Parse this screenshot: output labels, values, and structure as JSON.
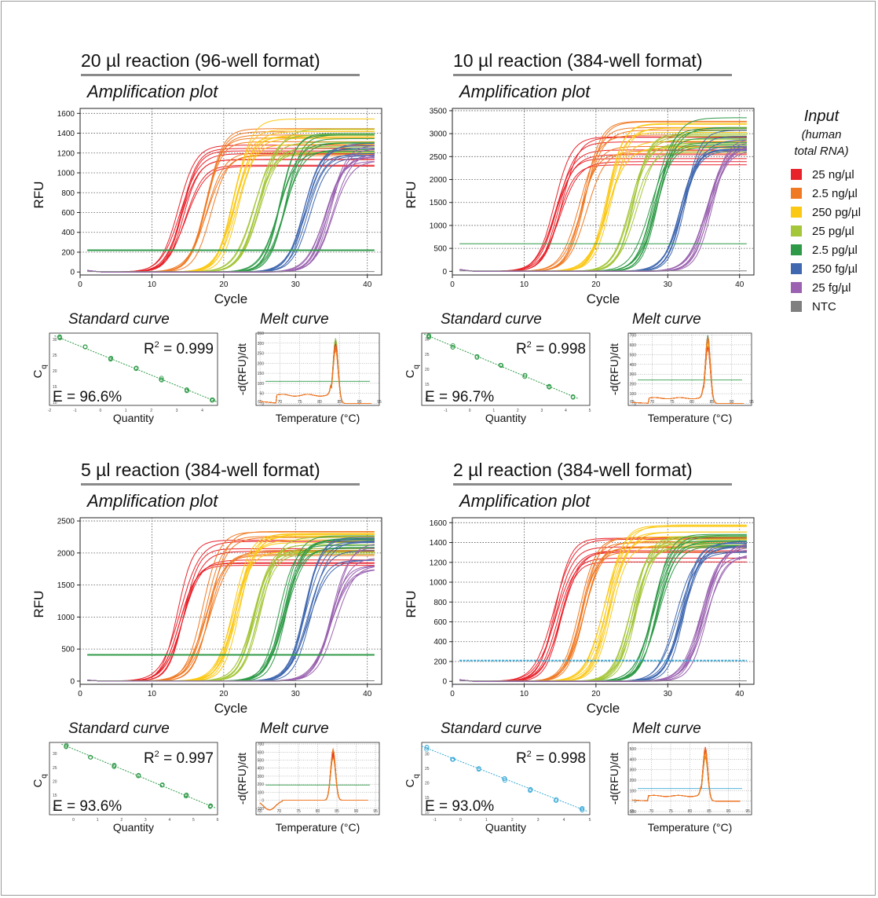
{
  "legend": {
    "title": "Input",
    "subtitle": [
      "(human",
      "total RNA)"
    ],
    "items": [
      {
        "label": "25 ng/µl",
        "color": "#e8222b"
      },
      {
        "label": "2.5 ng/µl",
        "color": "#f07a24"
      },
      {
        "label": "250 pg/µl",
        "color": "#fbc814"
      },
      {
        "label": "25 pg/µl",
        "color": "#a4c639"
      },
      {
        "label": "2.5 pg/µl",
        "color": "#2e9a47"
      },
      {
        "label": "250 fg/µl",
        "color": "#4068b0"
      },
      {
        "label": "25 fg/µl",
        "color": "#9a62b0"
      },
      {
        "label": "NTC",
        "color": "#7f7f7f"
      }
    ]
  },
  "chart_data": [
    {
      "panel": "20 µl reaction (96-well format)",
      "type": "line",
      "title": "Amplification plot",
      "xlabel": "Cycle",
      "ylabel": "RFU",
      "xlim": [
        0,
        42
      ],
      "ylim": [
        -30,
        1650
      ],
      "xticks": [
        0,
        10,
        20,
        30,
        40
      ],
      "yticks": [
        0,
        200,
        400,
        600,
        800,
        1000,
        1200,
        1400,
        1600
      ],
      "threshold": 220,
      "threshold_color": "#2e9a47",
      "series": [
        {
          "name": "25 ng/µl",
          "cq": 13.0,
          "plateau": [
            1050,
            1400
          ]
        },
        {
          "name": "2.5 ng/µl",
          "cq": 16.5,
          "plateau": [
            1150,
            1450
          ]
        },
        {
          "name": "250 pg/µl",
          "cq": 20.5,
          "plateau": [
            1200,
            1560
          ]
        },
        {
          "name": "25 pg/µl",
          "cq": 23.5,
          "plateau": [
            1200,
            1450
          ]
        },
        {
          "name": "2.5 pg/µl",
          "cq": 27.0,
          "plateau": [
            1200,
            1420
          ]
        },
        {
          "name": "250 fg/µl",
          "cq": 30.5,
          "plateau": [
            1150,
            1350
          ]
        },
        {
          "name": "25 fg/µl",
          "cq": 33.5,
          "plateau": [
            1100,
            1300
          ]
        },
        {
          "name": "NTC",
          "flat": 5
        }
      ],
      "standard_curve": {
        "title": "Standard curve",
        "xlabel": "Quantity",
        "ylabel": "C",
        "ylabel_sub": "q",
        "r2_label": "R",
        "r2_value": " = 0.999",
        "efficiency": "E = 96.6%",
        "xlim": [
          -2,
          4.6
        ],
        "ylim": [
          9,
          32
        ],
        "xticks": [
          -2,
          -1,
          0,
          1,
          2,
          3,
          4
        ],
        "yticks": [
          10,
          15,
          20,
          25,
          30
        ],
        "points": [
          [
            -1.6,
            30.5
          ],
          [
            -0.6,
            27.3
          ],
          [
            0.4,
            24.0
          ],
          [
            1.4,
            20.7
          ],
          [
            2.4,
            17.3
          ],
          [
            3.4,
            14.0
          ],
          [
            4.4,
            10.7
          ]
        ],
        "color": "#2e9a47"
      },
      "melt_curve": {
        "title": "Melt curve",
        "xlabel": "Temperature (°C)",
        "ylabel": "-d(RFU)/dt",
        "xlim": [
          64,
          95
        ],
        "ylim": [
          -10,
          350
        ],
        "xticks": [
          65,
          70,
          75,
          80,
          85,
          90,
          95
        ],
        "yticks": [
          0,
          50,
          100,
          150,
          200,
          250,
          300,
          350
        ],
        "threshold": 110,
        "threshold_color": "#2e9a47",
        "peak_temp": 84,
        "peak_max": 330,
        "shoulder": 45
      }
    },
    {
      "panel": "10 µl reaction (384-well format)",
      "type": "line",
      "title": "Amplification plot",
      "xlabel": "Cycle",
      "ylabel": "RFU",
      "xlim": [
        0,
        42
      ],
      "ylim": [
        -80,
        3550
      ],
      "xticks": [
        0,
        10,
        20,
        30,
        40
      ],
      "yticks": [
        0,
        500,
        1000,
        1500,
        2000,
        2500,
        3000,
        3500
      ],
      "threshold": 600,
      "threshold_color": "#2e9a47",
      "series": [
        {
          "name": "25 ng/µl",
          "cq": 13.5,
          "plateau": [
            2300,
            3000
          ]
        },
        {
          "name": "2.5 ng/µl",
          "cq": 17.0,
          "plateau": [
            2500,
            3300
          ]
        },
        {
          "name": "250 pg/µl",
          "cq": 20.5,
          "plateau": [
            2600,
            3300
          ]
        },
        {
          "name": "25 pg/µl",
          "cq": 24.0,
          "plateau": [
            2600,
            3200
          ]
        },
        {
          "name": "2.5 pg/µl",
          "cq": 27.0,
          "plateau": [
            2700,
            3350
          ]
        },
        {
          "name": "250 fg/µl",
          "cq": 31.0,
          "plateau": [
            2600,
            3100
          ]
        },
        {
          "name": "25 fg/µl",
          "cq": 34.5,
          "plateau": [
            2500,
            3000
          ]
        },
        {
          "name": "NTC",
          "flat": 10
        }
      ],
      "standard_curve": {
        "title": "Standard curve",
        "xlabel": "Quantity",
        "ylabel": "C",
        "ylabel_sub": "q",
        "r2_label": "R",
        "r2_value": " = 0.998",
        "efficiency": "E = 96.7%",
        "xlim": [
          -2,
          5
        ],
        "ylim": [
          8,
          32
        ],
        "xticks": [
          -1,
          0,
          1,
          2,
          3,
          4,
          5
        ],
        "yticks": [
          10,
          15,
          20,
          25,
          30
        ],
        "points": [
          [
            -1.7,
            31.0
          ],
          [
            -0.7,
            27.7
          ],
          [
            0.3,
            24.3
          ],
          [
            1.3,
            21.0
          ],
          [
            2.3,
            17.7
          ],
          [
            3.3,
            14.3
          ],
          [
            4.3,
            11.0
          ]
        ],
        "color": "#2e9a47"
      },
      "melt_curve": {
        "title": "Melt curve",
        "xlabel": "Temperature (°C)",
        "ylabel": "-d(RFU)/dt",
        "xlim": [
          64,
          95
        ],
        "ylim": [
          -20,
          720
        ],
        "xticks": [
          65,
          70,
          75,
          80,
          85,
          90,
          95
        ],
        "yticks": [
          0,
          100,
          200,
          300,
          400,
          500,
          600,
          700
        ],
        "threshold": 240,
        "threshold_color": "#2e9a47",
        "peak_temp": 84,
        "peak_max": 700,
        "shoulder": 60
      }
    },
    {
      "panel": "5 µl reaction (384-well format)",
      "type": "line",
      "title": "Amplification plot",
      "xlabel": "Cycle",
      "ylabel": "RFU",
      "xlim": [
        0,
        42
      ],
      "ylim": [
        -50,
        2550
      ],
      "xticks": [
        0,
        10,
        20,
        30,
        40
      ],
      "yticks": [
        0,
        500,
        1000,
        1500,
        2000,
        2500
      ],
      "threshold": 410,
      "threshold_color": "#2e9a47",
      "series": [
        {
          "name": "25 ng/µl",
          "cq": 13.0,
          "plateau": [
            1800,
            2200
          ]
        },
        {
          "name": "2.5 ng/µl",
          "cq": 16.5,
          "plateau": [
            1900,
            2350
          ]
        },
        {
          "name": "250 pg/µl",
          "cq": 20.5,
          "plateau": [
            1950,
            2400
          ]
        },
        {
          "name": "25 pg/µl",
          "cq": 23.5,
          "plateau": [
            1950,
            2300
          ]
        },
        {
          "name": "2.5 pg/µl",
          "cq": 27.0,
          "plateau": [
            1950,
            2300
          ]
        },
        {
          "name": "250 fg/µl",
          "cq": 30.5,
          "plateau": [
            1850,
            2250
          ]
        },
        {
          "name": "25 fg/µl",
          "cq": 34.0,
          "plateau": [
            1750,
            2200
          ]
        },
        {
          "name": "NTC",
          "flat": 5
        }
      ],
      "standard_curve": {
        "title": "Standard curve",
        "xlabel": "Quantity",
        "ylabel": "C",
        "ylabel_sub": "q",
        "r2_label": "R",
        "r2_value": " = 0.997",
        "efficiency": "E = 93.6%",
        "xlim": [
          -1,
          6
        ],
        "ylim": [
          8,
          34
        ],
        "xticks": [
          0,
          1,
          2,
          3,
          4,
          5,
          6
        ],
        "yticks": [
          10,
          15,
          20,
          25,
          30
        ],
        "points": [
          [
            -0.3,
            32.7
          ],
          [
            0.7,
            29.0
          ],
          [
            1.7,
            25.5
          ],
          [
            2.7,
            22.0
          ],
          [
            3.7,
            18.4
          ],
          [
            4.7,
            14.8
          ],
          [
            5.7,
            11.2
          ]
        ],
        "color": "#2e9a47"
      },
      "melt_curve": {
        "title": "Melt curve",
        "xlabel": "Temperature (°C)",
        "ylabel": "-d(RFU)/dt",
        "xlim": [
          64,
          96
        ],
        "ylim": [
          -180,
          720
        ],
        "xticks": [
          65,
          70,
          75,
          80,
          85,
          90,
          95
        ],
        "yticks": [
          -100,
          0,
          100,
          200,
          300,
          400,
          500,
          600,
          700
        ],
        "threshold": 190,
        "threshold_color": "#2e9a47",
        "peak_temp": 84,
        "peak_max": 650,
        "shoulder": 0,
        "dip": -120
      }
    },
    {
      "panel": "2 µl reaction (384-well format)",
      "type": "line",
      "title": "Amplification plot",
      "xlabel": "Cycle",
      "ylabel": "RFU",
      "xlim": [
        0,
        42
      ],
      "ylim": [
        -30,
        1650
      ],
      "xticks": [
        0,
        10,
        20,
        30,
        40
      ],
      "yticks": [
        0,
        200,
        400,
        600,
        800,
        1000,
        1200,
        1400,
        1600
      ],
      "threshold": 210,
      "threshold_color": "#3aa9d6",
      "series": [
        {
          "name": "25 ng/µl",
          "cq": 13.5,
          "plateau": [
            1200,
            1450
          ]
        },
        {
          "name": "2.5 ng/µl",
          "cq": 17.0,
          "plateau": [
            1300,
            1500
          ]
        },
        {
          "name": "250 pg/µl",
          "cq": 20.5,
          "plateau": [
            1350,
            1580
          ]
        },
        {
          "name": "25 pg/µl",
          "cq": 24.0,
          "plateau": [
            1350,
            1520
          ]
        },
        {
          "name": "2.5 pg/µl",
          "cq": 27.0,
          "plateau": [
            1350,
            1500
          ]
        },
        {
          "name": "250 fg/µl",
          "cq": 30.5,
          "plateau": [
            1300,
            1420
          ]
        },
        {
          "name": "25 fg/µl",
          "cq": 34.0,
          "plateau": [
            1250,
            1400
          ]
        },
        {
          "name": "NTC",
          "flat": 5
        }
      ],
      "standard_curve": {
        "title": "Standard curve",
        "xlabel": "Quantity",
        "ylabel": "C",
        "ylabel_sub": "q",
        "r2_label": "R",
        "r2_value": " = 0.998",
        "efficiency": "E = 93.0%",
        "xlim": [
          -1.5,
          5
        ],
        "ylim": [
          9,
          34
        ],
        "xticks": [
          -1,
          0,
          1,
          2,
          3,
          4,
          5
        ],
        "yticks": [
          10,
          15,
          20,
          25,
          30
        ],
        "points": [
          [
            -1.3,
            32.0
          ],
          [
            -0.3,
            28.4
          ],
          [
            0.7,
            24.8
          ],
          [
            1.7,
            21.2
          ],
          [
            2.7,
            17.6
          ],
          [
            3.7,
            14.0
          ],
          [
            4.7,
            10.9
          ]
        ],
        "color": "#3aa9d6"
      },
      "melt_curve": {
        "title": "Melt curve",
        "xlabel": "Temperature (°C)",
        "ylabel": "-d(RFU)/dt",
        "xlim": [
          64,
          96
        ],
        "ylim": [
          -130,
          560
        ],
        "xticks": [
          65,
          70,
          75,
          80,
          85,
          90,
          95
        ],
        "yticks": [
          -100,
          0,
          100,
          200,
          300,
          400,
          500
        ],
        "threshold": 120,
        "threshold_color": "#3aa9d6",
        "peak_temp": 84,
        "peak_max": 520,
        "shoulder": 55
      }
    }
  ]
}
